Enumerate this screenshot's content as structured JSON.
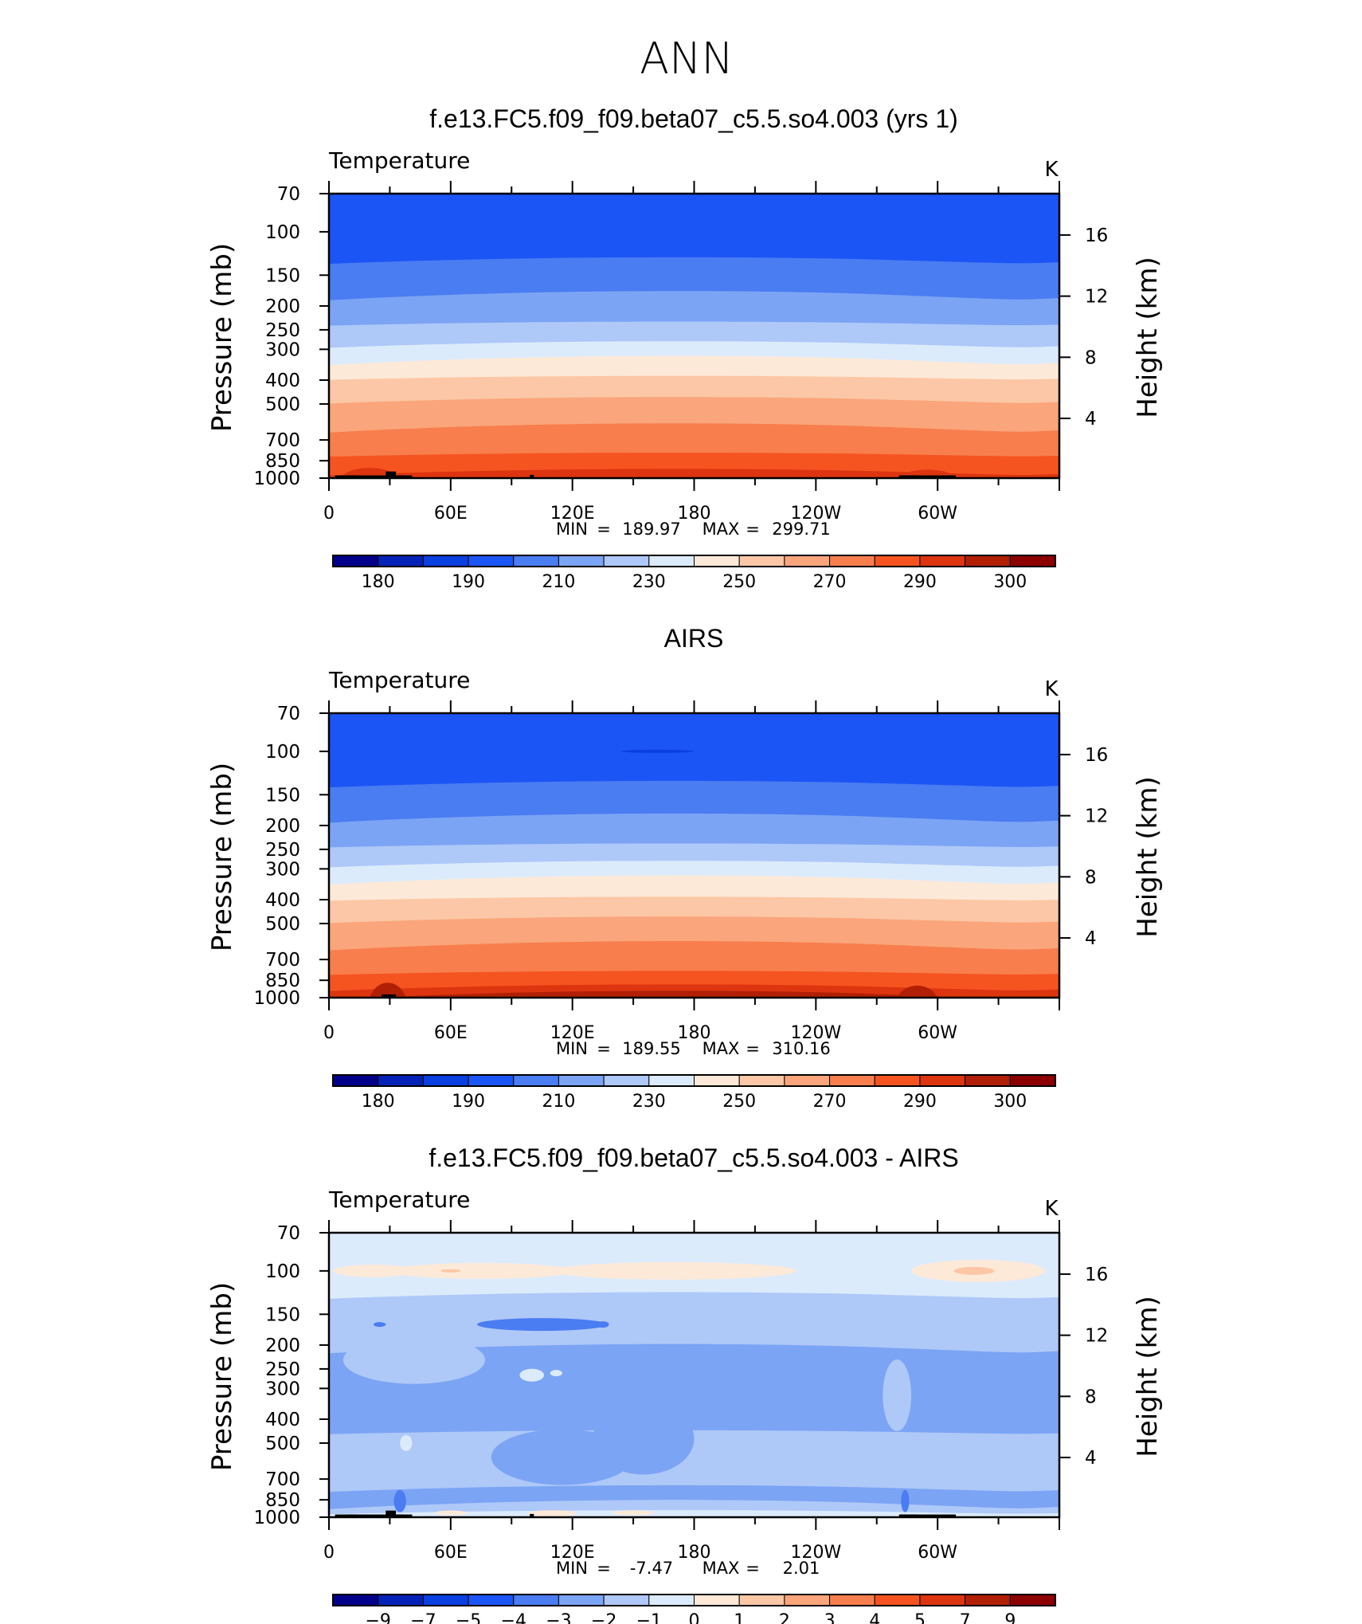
{
  "figure": {
    "title": "ANN"
  },
  "chart_data": [
    {
      "type": "heatmap",
      "panel_title": "f.e13.FC5.f09_f09.beta07_c5.5.so4.003 (yrs 1)",
      "variable": "Temperature",
      "units": "K",
      "ylabel": "Pressure (mb)",
      "ylabel_right": "Height (km)",
      "x_ticks": [
        "0",
        "60E",
        "120E",
        "180",
        "120W",
        "60W"
      ],
      "x_range_deg": [
        0,
        360
      ],
      "y_ticks": [
        "70",
        "100",
        "150",
        "200",
        "250",
        "300",
        "400",
        "500",
        "700",
        "850",
        "1000"
      ],
      "y_range_mb": [
        70,
        1000
      ],
      "height_ticks": [
        "16",
        "12",
        "8",
        "4"
      ],
      "stats": {
        "min_label": "MIN",
        "min": "189.97",
        "max_label": "MAX",
        "max": "299.71"
      },
      "colorbar_labels": [
        "180",
        "190",
        "210",
        "230",
        "250",
        "270",
        "290",
        "300"
      ],
      "colorbar_colors": [
        "#00008a",
        "#0522b8",
        "#0a3fe0",
        "#1c55f5",
        "#4a7cf2",
        "#7ca4f4",
        "#aec8f8",
        "#dcebfc",
        "#fde9d8",
        "#fcc7a6",
        "#faa57b",
        "#f87e4d",
        "#f55420",
        "#dd3510",
        "#b12005",
        "#8c0000"
      ],
      "layers": [
        {
          "p_top": 70,
          "color": "#1c55f5"
        },
        {
          "p_top": 130,
          "color": "#4a7cf2"
        },
        {
          "p_top": 180,
          "color": "#7ca4f4"
        },
        {
          "p_top": 235,
          "color": "#aec8f8"
        },
        {
          "p_top": 285,
          "color": "#dcebfc"
        },
        {
          "p_top": 330,
          "color": "#fde9d8"
        },
        {
          "p_top": 390,
          "color": "#fcc7a6"
        },
        {
          "p_top": 480,
          "color": "#faa57b"
        },
        {
          "p_top": 620,
          "color": "#f87e4d"
        },
        {
          "p_top": 800,
          "color": "#f55420"
        },
        {
          "p_top": 940,
          "color": "#dd3510"
        }
      ],
      "blobs": [],
      "surface_bumps": [
        {
          "lon": [
            5,
            35
          ],
          "color": "#dd3510",
          "p_top": 880
        },
        {
          "lon": [
            280,
            310
          ],
          "color": "#dd3510",
          "p_top": 900
        }
      ],
      "terrain": [
        {
          "lon": [
            3,
            14
          ],
          "p_top": 975
        },
        {
          "lon": [
            9,
            37
          ],
          "p_top": 975
        },
        {
          "lon": [
            28,
            33
          ],
          "p_top": 940
        },
        {
          "lon": [
            33,
            41
          ],
          "p_top": 975
        },
        {
          "lon": [
            99,
            101
          ],
          "p_top": 970
        },
        {
          "lon": [
            281,
            290
          ],
          "p_top": 975
        },
        {
          "lon": [
            282,
            309
          ],
          "p_top": 975
        }
      ]
    },
    {
      "type": "heatmap",
      "panel_title": "AIRS",
      "variable": "Temperature",
      "units": "K",
      "ylabel": "Pressure (mb)",
      "ylabel_right": "Height (km)",
      "x_ticks": [
        "0",
        "60E",
        "120E",
        "180",
        "120W",
        "60W"
      ],
      "x_range_deg": [
        0,
        360
      ],
      "y_ticks": [
        "70",
        "100",
        "150",
        "200",
        "250",
        "300",
        "400",
        "500",
        "700",
        "850",
        "1000"
      ],
      "y_range_mb": [
        70,
        1000
      ],
      "height_ticks": [
        "16",
        "12",
        "8",
        "4"
      ],
      "stats": {
        "min_label": "MIN",
        "min": "189.55",
        "max_label": "MAX",
        "max": "310.16"
      },
      "colorbar_labels": [
        "180",
        "190",
        "210",
        "230",
        "250",
        "270",
        "290",
        "300"
      ],
      "colorbar_colors": [
        "#00008a",
        "#0522b8",
        "#0a3fe0",
        "#1c55f5",
        "#4a7cf2",
        "#7ca4f4",
        "#aec8f8",
        "#dcebfc",
        "#fde9d8",
        "#fcc7a6",
        "#faa57b",
        "#f87e4d",
        "#f55420",
        "#dd3510",
        "#b12005",
        "#8c0000"
      ],
      "layers": [
        {
          "p_top": 70,
          "color": "#1c55f5"
        },
        {
          "p_top": 135,
          "color": "#4a7cf2"
        },
        {
          "p_top": 185,
          "color": "#7ca4f4"
        },
        {
          "p_top": 240,
          "color": "#aec8f8"
        },
        {
          "p_top": 285,
          "color": "#dcebfc"
        },
        {
          "p_top": 330,
          "color": "#fde9d8"
        },
        {
          "p_top": 395,
          "color": "#fcc7a6"
        },
        {
          "p_top": 480,
          "color": "#faa57b"
        },
        {
          "p_top": 610,
          "color": "#f87e4d"
        },
        {
          "p_top": 790,
          "color": "#f55420"
        },
        {
          "p_top": 905,
          "color": "#dd3510"
        },
        {
          "p_top": 970,
          "color": "#b12005"
        }
      ],
      "blobs": [
        {
          "lon": 162,
          "p": 100,
          "rx_deg": 18,
          "ry_px": 2,
          "color": "#0a3fe0"
        }
      ],
      "surface_bumps": [
        {
          "lon": [
            20,
            38
          ],
          "color": "#b12005",
          "p_top": 830
        },
        {
          "lon": [
            280,
            300
          ],
          "color": "#b12005",
          "p_top": 860
        }
      ],
      "terrain": [
        {
          "lon": [
            26,
            33
          ],
          "p_top": 970
        }
      ]
    },
    {
      "type": "heatmap",
      "panel_title": "f.e13.FC5.f09_f09.beta07_c5.5.so4.003 - AIRS",
      "variable": "Temperature",
      "units": "K",
      "ylabel": "Pressure (mb)",
      "ylabel_right": "Height (km)",
      "x_ticks": [
        "0",
        "60E",
        "120E",
        "180",
        "120W",
        "60W"
      ],
      "x_range_deg": [
        0,
        360
      ],
      "y_ticks": [
        "70",
        "100",
        "150",
        "200",
        "250",
        "300",
        "400",
        "500",
        "700",
        "850",
        "1000"
      ],
      "y_range_mb": [
        70,
        1000
      ],
      "height_ticks": [
        "16",
        "12",
        "8",
        "4"
      ],
      "stats": {
        "min_label": "MIN",
        "min": "-7.47",
        "max_label": "MAX",
        "max": "2.01"
      },
      "colorbar_labels": [
        "−9",
        "−7",
        "−5",
        "−4",
        "−3",
        "−2",
        "−1",
        "0",
        "1",
        "2",
        "3",
        "4",
        "5",
        "7",
        "9"
      ],
      "colorbar_colors": [
        "#00008a",
        "#0522b8",
        "#0a3fe0",
        "#1c55f5",
        "#4a7cf2",
        "#7ca4f4",
        "#aec8f8",
        "#dcebfc",
        "#fde9d8",
        "#fcc7a6",
        "#faa57b",
        "#f87e4d",
        "#f55420",
        "#dd3510",
        "#b12005",
        "#8c0000"
      ],
      "layers": [
        {
          "p_top": 70,
          "color": "#dcebfc"
        },
        {
          "p_top": 125,
          "color": "#aec8f8"
        },
        {
          "p_top": 205,
          "color": "#7ca4f4"
        },
        {
          "p_top": 450,
          "color": "#aec8f8"
        },
        {
          "p_top": 760,
          "color": "#7ca4f4"
        },
        {
          "p_top": 880,
          "color": "#aec8f8"
        },
        {
          "p_top": 950,
          "color": "#dcebfc"
        }
      ],
      "blobs": [
        {
          "lon": 22,
          "p": 100,
          "rx_deg": 20,
          "ry_px": 8,
          "color": "#fde9d8"
        },
        {
          "lon": 75,
          "p": 100,
          "rx_deg": 45,
          "ry_px": 10,
          "color": "#fde9d8"
        },
        {
          "lon": 170,
          "p": 100,
          "rx_deg": 60,
          "ry_px": 11,
          "color": "#fde9d8"
        },
        {
          "lon": 320,
          "p": 100,
          "rx_deg": 33,
          "ry_px": 14,
          "color": "#fde9d8"
        },
        {
          "lon": 318,
          "p": 100,
          "rx_deg": 10,
          "ry_px": 5,
          "color": "#fcc7a6"
        },
        {
          "lon": 60,
          "p": 100,
          "rx_deg": 5,
          "ry_px": 2,
          "color": "#fcc7a6"
        },
        {
          "lon": 105,
          "p": 165,
          "rx_deg": 32,
          "ry_px": 8,
          "color": "#4a7cf2"
        },
        {
          "lon": 25,
          "p": 165,
          "rx_deg": 3,
          "ry_px": 3,
          "color": "#4a7cf2"
        },
        {
          "lon": 135,
          "p": 165,
          "rx_deg": 3,
          "ry_px": 4,
          "color": "#4a7cf2"
        },
        {
          "lon": 100,
          "p": 265,
          "rx_deg": 6,
          "ry_px": 8,
          "color": "#dcebfc"
        },
        {
          "lon": 112,
          "p": 260,
          "rx_deg": 3,
          "ry_px": 4,
          "color": "#dcebfc"
        },
        {
          "lon": 38,
          "p": 500,
          "rx_deg": 3,
          "ry_px": 10,
          "color": "#dcebfc"
        },
        {
          "lon": 115,
          "p": 570,
          "rx_deg": 35,
          "ry_px": 35,
          "color": "#7ca4f4"
        },
        {
          "lon": 155,
          "p": 480,
          "rx_deg": 25,
          "ry_px": 45,
          "color": "#7ca4f4"
        },
        {
          "lon": 42,
          "p": 230,
          "rx_deg": 35,
          "ry_px": 30,
          "color": "#aec8f8"
        },
        {
          "lon": 280,
          "p": 320,
          "rx_deg": 7,
          "ry_px": 45,
          "color": "#aec8f8"
        },
        {
          "lon": 35,
          "p": 860,
          "rx_deg": 3,
          "ry_px": 14,
          "color": "#4a7cf2"
        },
        {
          "lon": 284,
          "p": 860,
          "rx_deg": 2,
          "ry_px": 14,
          "color": "#4a7cf2"
        },
        {
          "lon": 110,
          "p": 965,
          "rx_deg": 12,
          "ry_px": 4,
          "color": "#fde9d8"
        },
        {
          "lon": 150,
          "p": 960,
          "rx_deg": 10,
          "ry_px": 3,
          "color": "#fde9d8"
        },
        {
          "lon": 60,
          "p": 960,
          "rx_deg": 8,
          "ry_px": 3,
          "color": "#fde9d8"
        }
      ],
      "surface_bumps": [],
      "terrain": [
        {
          "lon": [
            3,
            14
          ],
          "p_top": 975
        },
        {
          "lon": [
            9,
            37
          ],
          "p_top": 975
        },
        {
          "lon": [
            28,
            33
          ],
          "p_top": 940
        },
        {
          "lon": [
            33,
            41
          ],
          "p_top": 975
        },
        {
          "lon": [
            99,
            101
          ],
          "p_top": 970
        },
        {
          "lon": [
            281,
            290
          ],
          "p_top": 975
        },
        {
          "lon": [
            282,
            309
          ],
          "p_top": 975
        }
      ]
    }
  ]
}
